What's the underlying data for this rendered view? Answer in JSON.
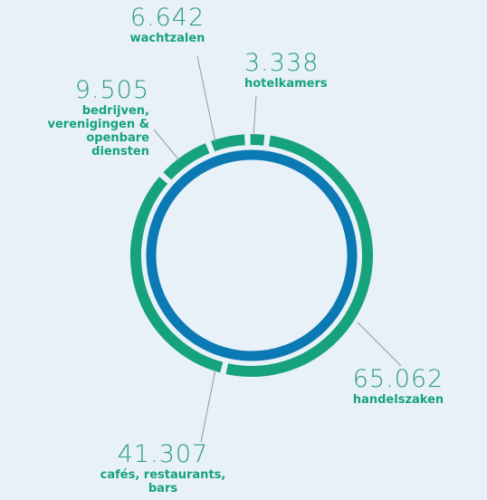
{
  "chart_data": {
    "type": "donut",
    "categories": [
      "hotelkamers",
      "handelszaken",
      "cafés, restaurants, bars",
      "bedrijven, verenigingen & openbare diensten",
      "wachtzalen"
    ],
    "values": [
      3338,
      65062,
      41307,
      9505,
      6642
    ],
    "value_labels": [
      "3.338",
      "65.062",
      "41.307",
      "9.505",
      "6.642"
    ],
    "color": "#16a37b"
  }
}
